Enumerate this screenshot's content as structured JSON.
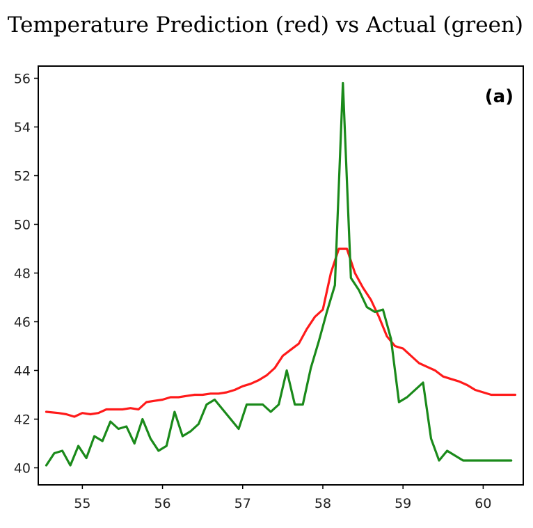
{
  "chart_data": {
    "type": "line",
    "title": "Temperature Prediction (red) vs Actual (green)",
    "panel_label": "(a)",
    "xlabel": "",
    "ylabel": "",
    "xlim": [
      54.45,
      60.5
    ],
    "ylim": [
      39.3,
      56.5
    ],
    "x_ticks": [
      55,
      56,
      57,
      58,
      59,
      60
    ],
    "y_ticks": [
      40,
      42,
      44,
      46,
      48,
      50,
      52,
      54,
      56
    ],
    "grid": false,
    "series": [
      {
        "color": "#ff1a1a",
        "x": [
          54.55,
          54.7,
          54.8,
          54.9,
          55.0,
          55.1,
          55.2,
          55.3,
          55.4,
          55.5,
          55.6,
          55.7,
          55.8,
          55.9,
          56.0,
          56.1,
          56.2,
          56.3,
          56.4,
          56.5,
          56.6,
          56.7,
          56.8,
          56.9,
          57.0,
          57.1,
          57.2,
          57.3,
          57.4,
          57.5,
          57.6,
          57.7,
          57.8,
          57.9,
          58.0,
          58.1,
          58.2,
          58.3,
          58.4,
          58.5,
          58.6,
          58.7,
          58.8,
          58.9,
          59.0,
          59.1,
          59.2,
          59.3,
          59.4,
          59.5,
          59.6,
          59.7,
          59.8,
          59.9,
          60.0,
          60.1,
          60.2,
          60.3,
          60.4
        ],
        "y": [
          42.3,
          42.25,
          42.2,
          42.1,
          42.25,
          42.2,
          42.25,
          42.4,
          42.4,
          42.4,
          42.45,
          42.4,
          42.7,
          42.75,
          42.8,
          42.9,
          42.9,
          42.95,
          43.0,
          43.0,
          43.05,
          43.05,
          43.1,
          43.2,
          43.35,
          43.45,
          43.6,
          43.8,
          44.1,
          44.6,
          44.85,
          45.1,
          45.7,
          46.2,
          46.5,
          48.0,
          49.0,
          49.0,
          48.0,
          47.4,
          46.9,
          46.2,
          45.4,
          45.0,
          44.9,
          44.6,
          44.3,
          44.15,
          44.0,
          43.75,
          43.65,
          43.55,
          43.4,
          43.2,
          43.1,
          43.0,
          43.0,
          43.0,
          43.0
        ]
      },
      {
        "color": "#1a8a1a",
        "x": [
          54.55,
          54.65,
          54.75,
          54.85,
          54.95,
          55.05,
          55.15,
          55.25,
          55.35,
          55.45,
          55.55,
          55.65,
          55.75,
          55.85,
          55.95,
          56.05,
          56.15,
          56.25,
          56.35,
          56.45,
          56.55,
          56.65,
          56.75,
          56.85,
          56.95,
          57.05,
          57.15,
          57.25,
          57.35,
          57.45,
          57.55,
          57.65,
          57.75,
          57.85,
          57.95,
          58.05,
          58.15,
          58.25,
          58.35,
          58.45,
          58.55,
          58.65,
          58.75,
          58.85,
          58.95,
          59.05,
          59.15,
          59.25,
          59.35,
          59.45,
          59.55,
          59.65,
          59.75,
          59.85,
          59.95,
          60.05,
          60.15,
          60.25,
          60.35
        ],
        "y": [
          40.1,
          40.6,
          40.7,
          40.1,
          40.9,
          40.4,
          41.3,
          41.1,
          41.9,
          41.6,
          41.7,
          41.0,
          42.0,
          41.2,
          40.7,
          40.9,
          42.3,
          41.3,
          41.5,
          41.8,
          42.6,
          42.8,
          42.4,
          42.0,
          41.6,
          42.6,
          42.6,
          42.6,
          42.3,
          42.6,
          44.0,
          42.6,
          42.6,
          44.1,
          45.2,
          46.4,
          47.5,
          55.8,
          47.8,
          47.3,
          46.6,
          46.4,
          46.5,
          45.3,
          42.7,
          42.9,
          43.2,
          43.5,
          41.2,
          40.3,
          40.7,
          40.5,
          40.3,
          40.3,
          40.3,
          40.3,
          40.3,
          40.3,
          40.3
        ]
      }
    ]
  }
}
